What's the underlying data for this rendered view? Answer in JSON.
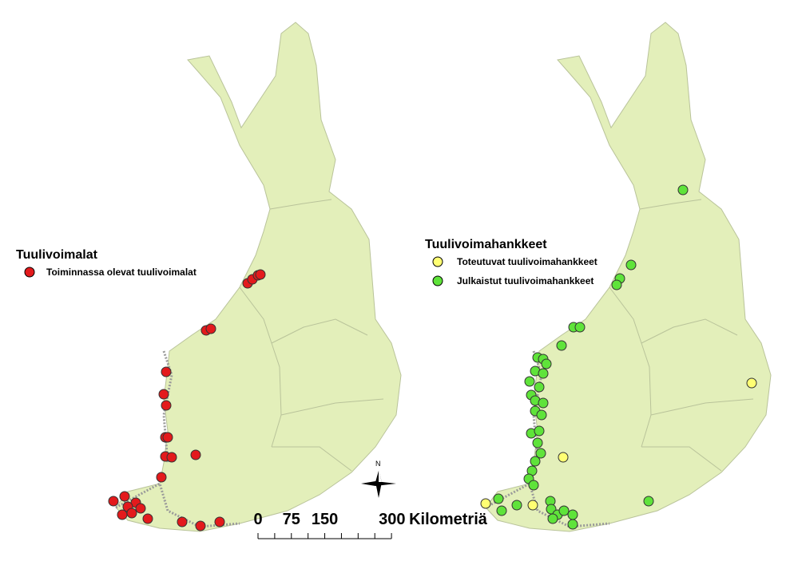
{
  "maps": [
    {
      "legend": {
        "title": "Tuulivoimalat",
        "items": [
          {
            "label": "Toiminnassa olevat tuulivoimalat",
            "color": "#e31a1c"
          }
        ]
      }
    },
    {
      "legend": {
        "title": "Tuulivoimahankkeet",
        "items": [
          {
            "label": "Toteutuvat tuulivoimahankkeet",
            "color": "#ffff73"
          },
          {
            "label": "Julkaistut tuulivoimahankkeet",
            "color": "#5fe33a"
          }
        ]
      }
    }
  ],
  "scale_bar": {
    "ticks": [
      0,
      75,
      150,
      300
    ],
    "unit": "Kilometriä"
  },
  "north_arrow": "N"
}
